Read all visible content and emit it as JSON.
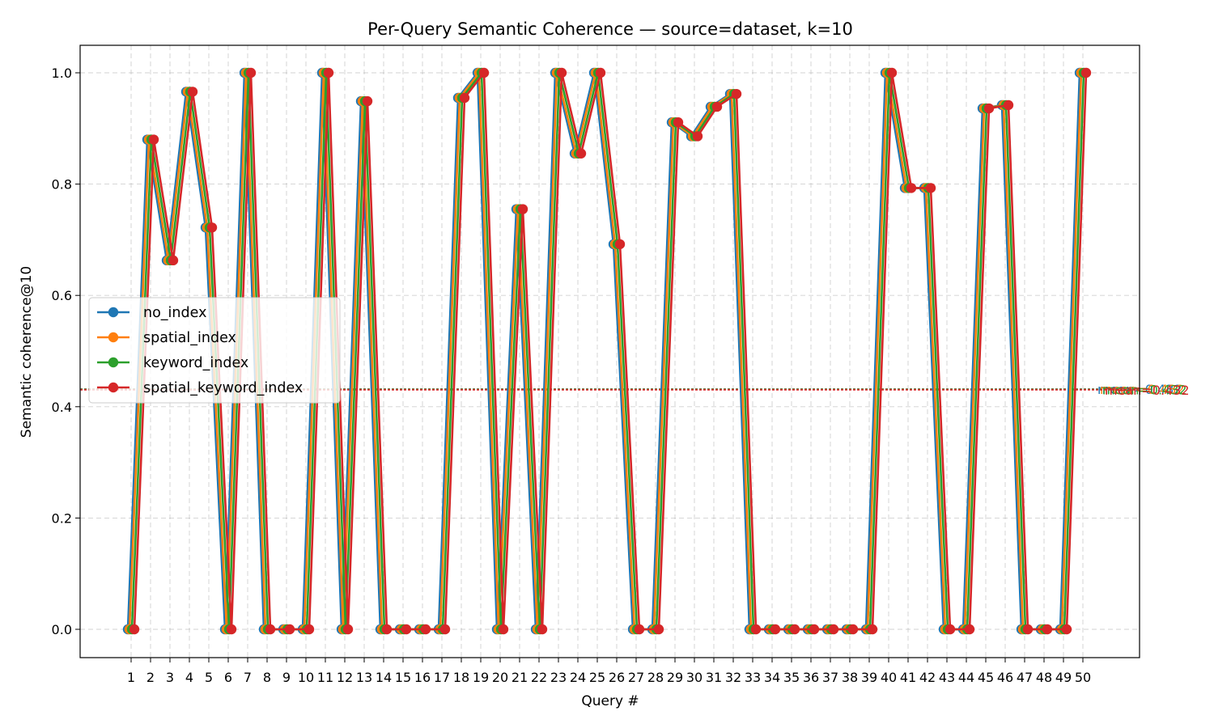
{
  "chart_data": {
    "type": "line",
    "title": "Per-Query Semantic Coherence — source=dataset, k=10",
    "xlabel": "Query #",
    "ylabel": "Semantic coherence@10",
    "ylim": [
      -0.05,
      1.05
    ],
    "yticks": [
      0.0,
      0.2,
      0.4,
      0.6,
      0.8,
      1.0
    ],
    "ytick_labels": [
      "0.0",
      "0.2",
      "0.4",
      "0.6",
      "0.8",
      "1.0"
    ],
    "grid": true,
    "legend_position": "center-left",
    "x": [
      1,
      2,
      3,
      4,
      5,
      6,
      7,
      8,
      9,
      10,
      11,
      12,
      13,
      14,
      15,
      16,
      17,
      18,
      19,
      20,
      21,
      22,
      23,
      24,
      25,
      26,
      27,
      28,
      29,
      30,
      31,
      32,
      33,
      34,
      35,
      36,
      37,
      38,
      39,
      40,
      41,
      42,
      43,
      44,
      45,
      46,
      47,
      48,
      49,
      50
    ],
    "x_tick_labels": [
      "1",
      "2",
      "3",
      "4",
      "5",
      "6",
      "7",
      "8",
      "9",
      "10",
      "11",
      "12",
      "13",
      "14",
      "15",
      "16",
      "17",
      "18",
      "19",
      "20",
      "21",
      "22",
      "23",
      "24",
      "25",
      "26",
      "27",
      "28",
      "29",
      "30",
      "31",
      "32",
      "33",
      "34",
      "35",
      "36",
      "37",
      "38",
      "39",
      "40",
      "41",
      "42",
      "43",
      "44",
      "45",
      "46",
      "47",
      "48",
      "49",
      "50"
    ],
    "values": [
      0,
      0.88,
      0.663,
      0.966,
      0.722,
      0,
      1.0,
      0,
      0,
      0,
      1.0,
      0,
      0.949,
      0,
      0,
      0,
      0,
      0.955,
      1.0,
      0,
      0.755,
      0,
      1.0,
      0.855,
      1.0,
      0.692,
      0,
      0,
      0.911,
      0.886,
      0.939,
      0.962,
      0,
      0,
      0,
      0,
      0,
      0,
      0,
      1.0,
      0.793,
      0.793,
      0,
      0,
      0.936,
      0.942,
      0,
      0,
      0,
      1.0
    ],
    "series": [
      {
        "name": "no_index",
        "color": "#1f77b4",
        "mean": 0.432,
        "mean_label": "mean=0.432"
      },
      {
        "name": "spatial_index",
        "color": "#ff7f0e",
        "mean": 0.432,
        "mean_label": "mean=0.432"
      },
      {
        "name": "keyword_index",
        "color": "#2ca02c",
        "mean": 0.432,
        "mean_label": "mean=0.432"
      },
      {
        "name": "spatial_keyword_index",
        "color": "#d62728",
        "mean": 0.432,
        "mean_label": "mean=0.432"
      }
    ]
  }
}
